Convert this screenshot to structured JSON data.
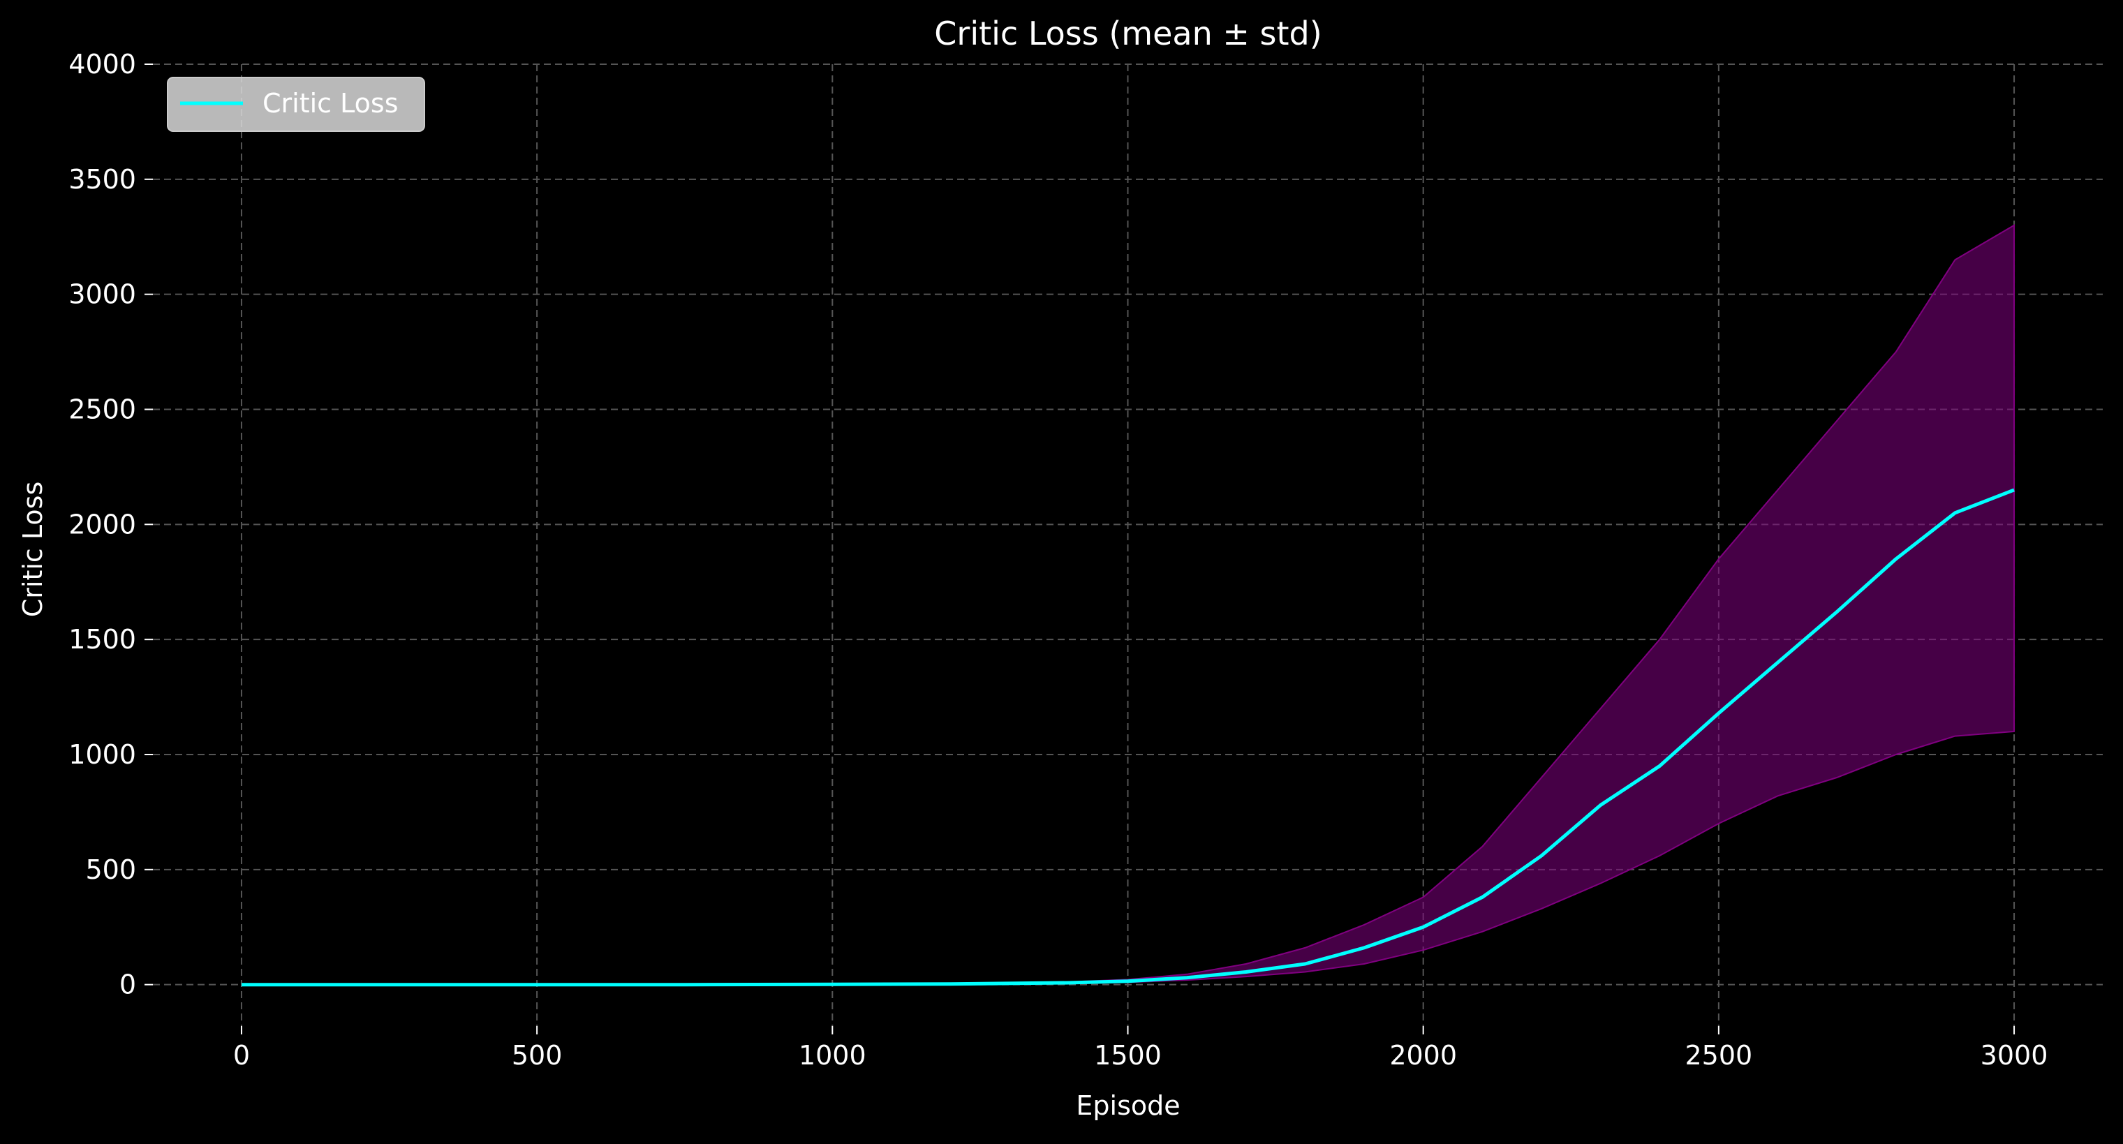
{
  "chart_data": {
    "type": "line",
    "title": "Critic Loss (mean ± std)",
    "xlabel": "Episode",
    "ylabel": "Critic Loss",
    "xlim": [
      -150,
      3150
    ],
    "ylim": [
      -180,
      4000
    ],
    "x_ticks": [
      0,
      500,
      1000,
      1500,
      2000,
      2500,
      3000
    ],
    "y_ticks": [
      0,
      500,
      1000,
      1500,
      2000,
      2500,
      3000,
      3500,
      4000
    ],
    "grid": true,
    "legend_position": "top-left",
    "series": [
      {
        "name": "Critic Loss",
        "color": "#00ffff",
        "band_color": "#800080",
        "band": "mean ± std",
        "x": [
          0,
          250,
          500,
          750,
          1000,
          1200,
          1400,
          1500,
          1600,
          1700,
          1800,
          1900,
          2000,
          2100,
          2200,
          2300,
          2400,
          2500,
          2600,
          2700,
          2800,
          2900,
          3000
        ],
        "mean": [
          0,
          0,
          0,
          0,
          1,
          3,
          8,
          15,
          30,
          55,
          90,
          160,
          250,
          380,
          560,
          780,
          950,
          1180,
          1400,
          1620,
          1850,
          2050,
          2150
        ],
        "upper": [
          0,
          0,
          0,
          0,
          2,
          5,
          12,
          22,
          45,
          90,
          160,
          260,
          380,
          600,
          900,
          1200,
          1500,
          1850,
          2150,
          2450,
          2750,
          3150,
          3300
        ],
        "lower": [
          0,
          0,
          0,
          0,
          0,
          1,
          4,
          10,
          20,
          35,
          55,
          90,
          150,
          230,
          330,
          440,
          560,
          700,
          820,
          900,
          1000,
          1080,
          1100
        ]
      }
    ]
  }
}
